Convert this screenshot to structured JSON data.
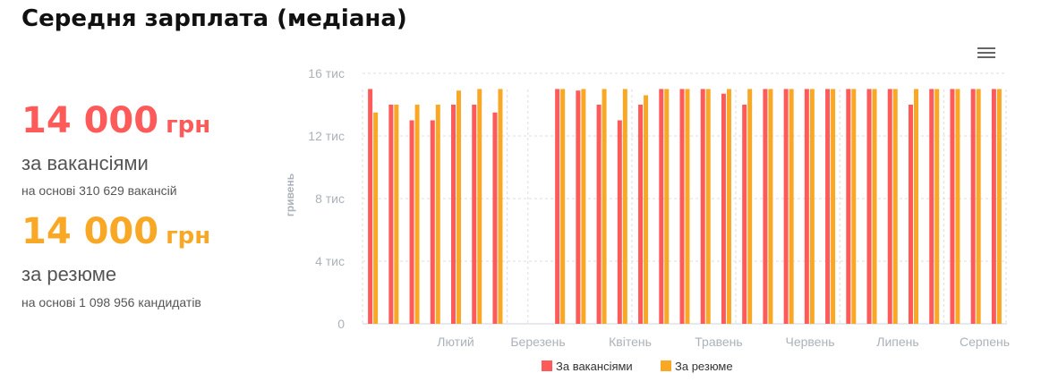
{
  "title": "Середня зарплата (медіана)",
  "stats": {
    "vacancies": {
      "value": "14 000",
      "currency": "грн",
      "label": "за вакансіями",
      "note": "на основі 310 629 вакансій",
      "color": "#ff5a5a"
    },
    "resumes": {
      "value": "14 000",
      "currency": "грн",
      "label": "за резюме",
      "note": "на основі 1 098 956 кандидатів",
      "color": "#f9a825"
    }
  },
  "menu_icon": "hamburger-menu-icon",
  "chart_data": {
    "type": "bar",
    "ylabel": "гривень",
    "ylim": [
      0,
      16000
    ],
    "y_ticks": [
      {
        "value": 0,
        "label": "0"
      },
      {
        "value": 4000,
        "label": "4 тис"
      },
      {
        "value": 8000,
        "label": "8 тис"
      },
      {
        "value": 12000,
        "label": "12 тис"
      },
      {
        "value": 16000,
        "label": "16 тис"
      }
    ],
    "x_ticks": [
      "Лютий",
      "Березень",
      "Квітень",
      "Травень",
      "Червень",
      "Липень",
      "Серпень"
    ],
    "grid": true,
    "legend_position": "bottom-center",
    "series": [
      {
        "name": "За вакансіями",
        "color": "#ff5a5a",
        "values": [
          15000,
          14000,
          13000,
          13000,
          14000,
          14000,
          13500,
          null,
          null,
          15000,
          14900,
          14000,
          13000,
          14000,
          15000,
          15000,
          15000,
          14700,
          14000,
          15000,
          15000,
          15000,
          15000,
          15000,
          15000,
          15000,
          14000,
          15000,
          15000,
          15000,
          15000
        ]
      },
      {
        "name": "За резюме",
        "color": "#f9a825",
        "values": [
          13500,
          14000,
          14000,
          14000,
          14900,
          15000,
          15000,
          null,
          null,
          15000,
          15000,
          15000,
          15000,
          14600,
          15000,
          15000,
          15000,
          15000,
          15000,
          15000,
          15000,
          15000,
          15000,
          15000,
          15000,
          15000,
          15000,
          15000,
          15000,
          15000,
          15000
        ]
      }
    ]
  }
}
